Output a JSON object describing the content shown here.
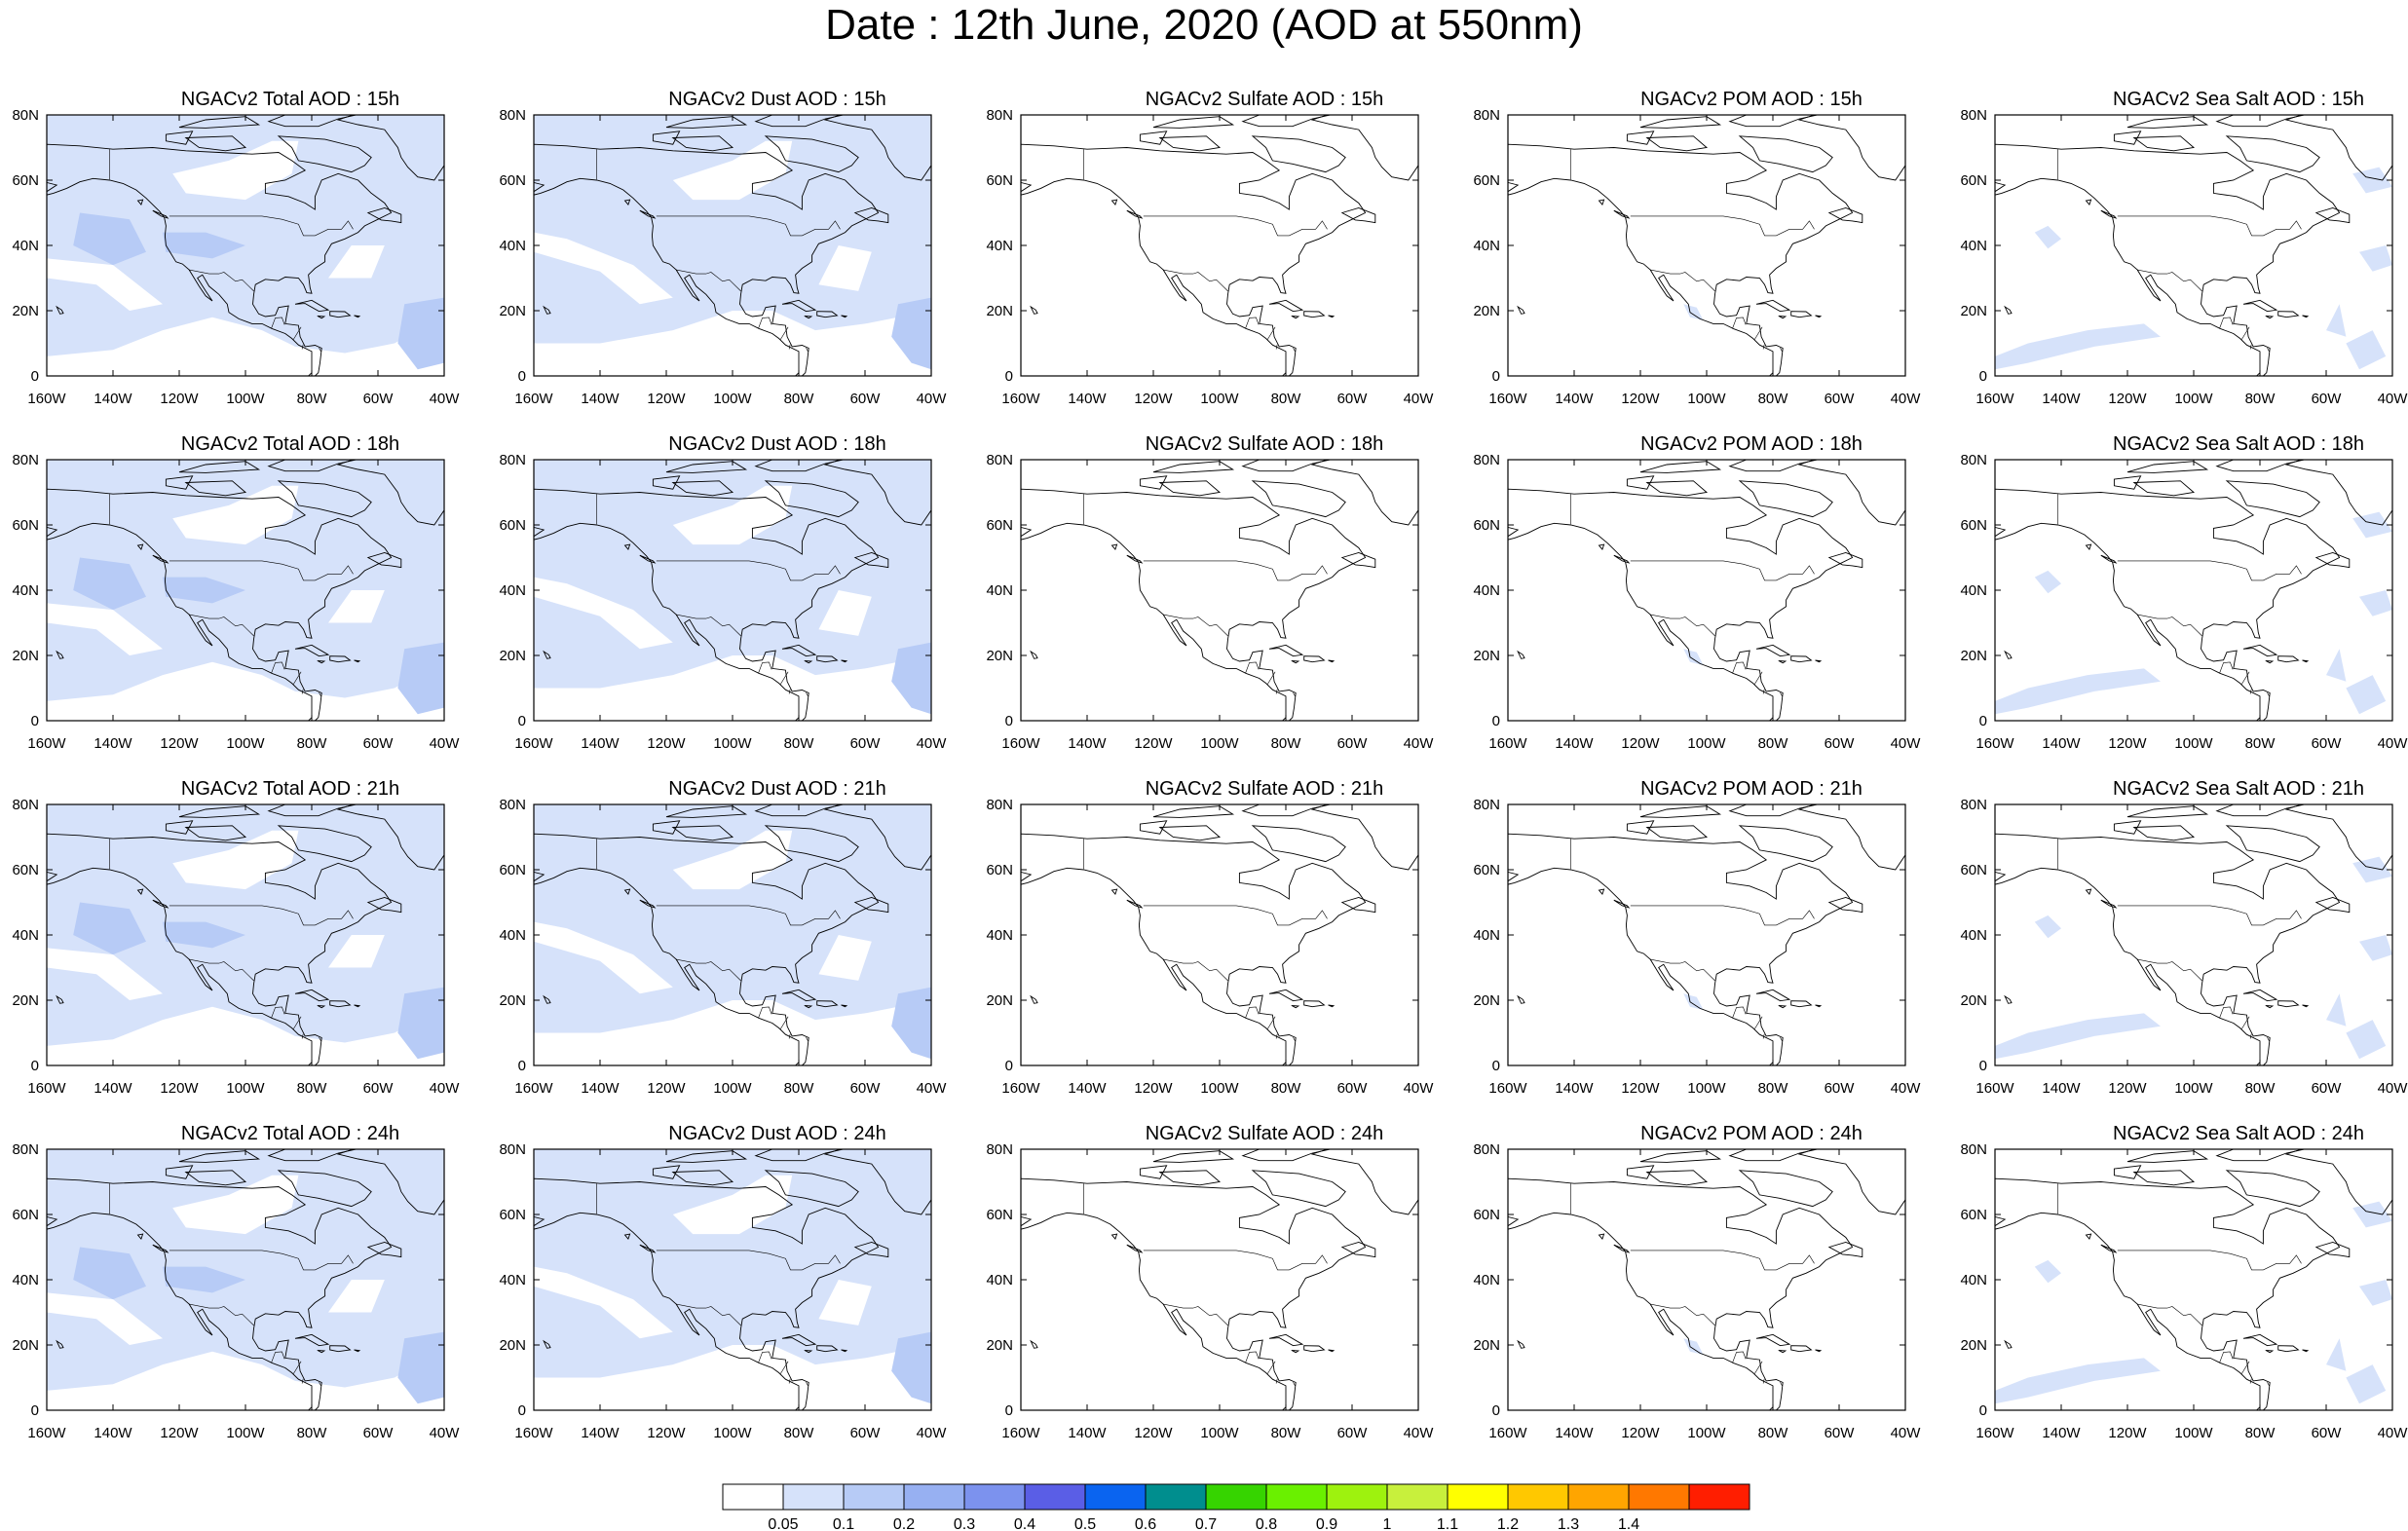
{
  "title": "Date : 12th June, 2020 (AOD at 550nm)",
  "panels": [
    "NGACv2 Total AOD : 15h",
    "NGACv2 Dust AOD : 15h",
    "NGACv2 Sulfate AOD : 15h",
    "NGACv2 POM AOD : 15h",
    "NGACv2 Sea Salt AOD : 15h",
    "NGACv2 Total AOD : 18h",
    "NGACv2 Dust AOD : 18h",
    "NGACv2 Sulfate AOD : 18h",
    "NGACv2 POM AOD : 18h",
    "NGACv2 Sea Salt AOD : 18h",
    "NGACv2 Total AOD : 21h",
    "NGACv2 Dust AOD : 21h",
    "NGACv2 Sulfate AOD : 21h",
    "NGACv2 POM AOD : 21h",
    "NGACv2 Sea Salt AOD : 21h",
    "NGACv2 Total AOD : 24h",
    "NGACv2 Dust AOD : 24h",
    "NGACv2 Sulfate AOD : 24h",
    "NGACv2 POM AOD : 24h",
    "NGACv2 Sea Salt  AOD : 24h"
  ],
  "map": {
    "lon_ticks": [
      "160W",
      "140W",
      "120W",
      "100W",
      "80W",
      "60W",
      "40W"
    ],
    "lat_ticks": [
      "0",
      "20N",
      "40N",
      "60N",
      "80N"
    ],
    "lon_range": [
      -160,
      -40
    ],
    "lat_range": [
      0,
      80
    ]
  },
  "colorbar": {
    "labels": [
      "0.05",
      "0.1",
      "0.2",
      "0.3",
      "0.4",
      "0.5",
      "0.6",
      "0.7",
      "0.8",
      "0.9",
      "1",
      "1.1",
      "1.2",
      "1.3",
      "1.4"
    ],
    "colors": [
      "#ffffff",
      "#d6e2fa",
      "#b7cbf6",
      "#97b0f2",
      "#7c92ee",
      "#5a5ee6",
      "#0a64f0",
      "#008e8e",
      "#36d400",
      "#6af000",
      "#9ef20e",
      "#c8f03c",
      "#ffff00",
      "#ffc800",
      "#ffa500",
      "#ff7800",
      "#ff1e00"
    ]
  },
  "colors": {
    "light_fill": "#d6e2fa",
    "mid_fill": "#b7cbf6"
  }
}
